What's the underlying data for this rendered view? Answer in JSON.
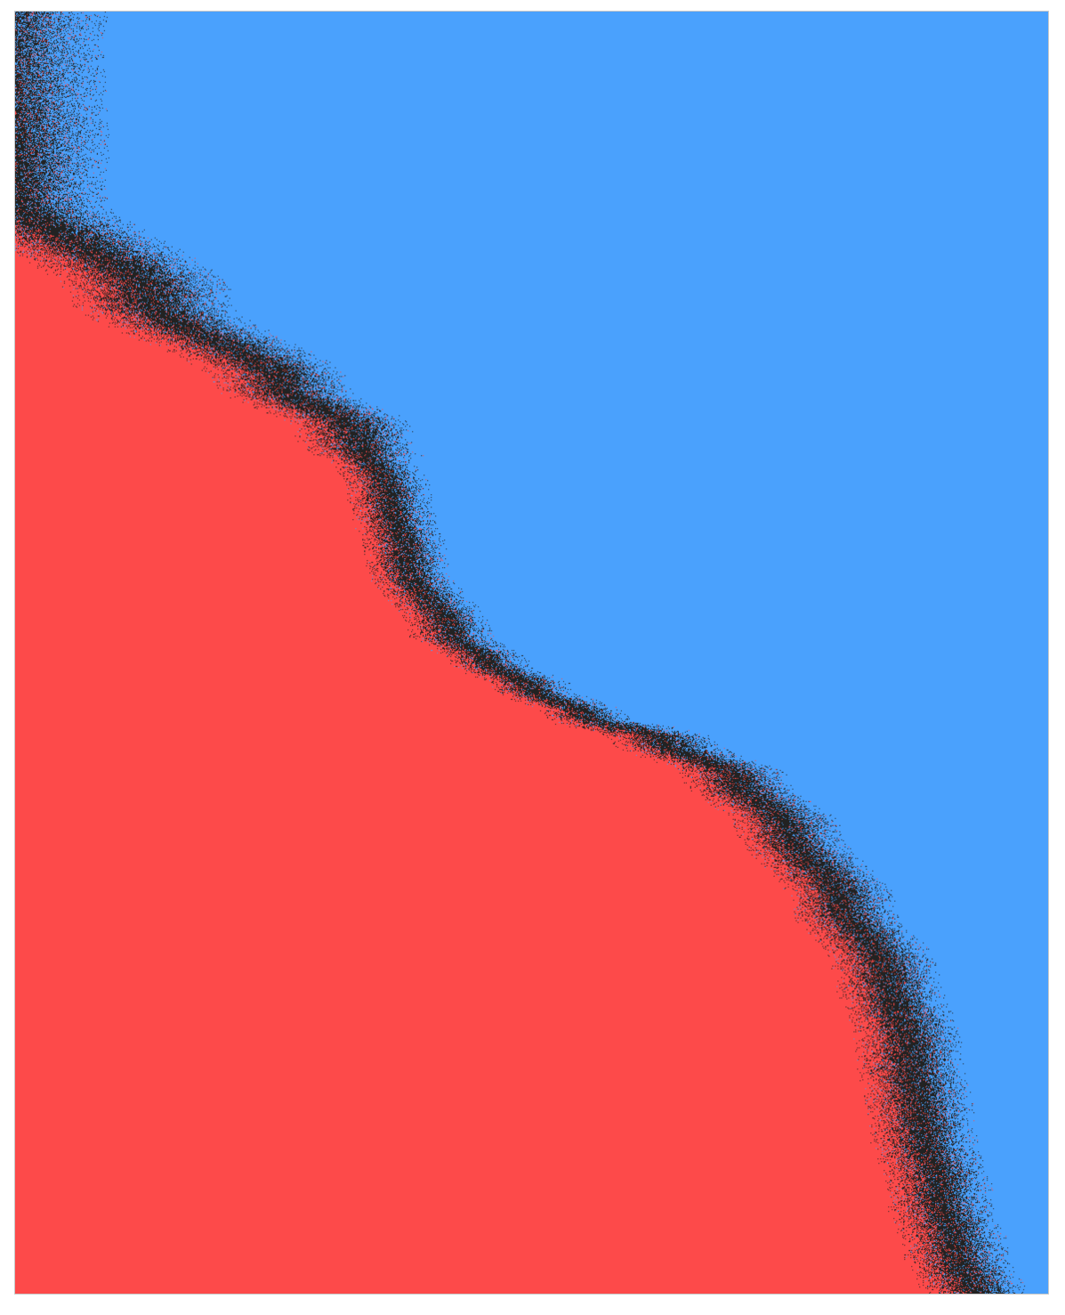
{
  "colors": {
    "top_region": "#4aa1fd",
    "bottom_region": "#fd4a4a",
    "boundary_noise": "#222222",
    "frame_border": "#c8c8c8",
    "page_background": "#ffffff"
  },
  "regions": [
    {
      "name": "blue-region"
    },
    {
      "name": "red-region"
    }
  ]
}
